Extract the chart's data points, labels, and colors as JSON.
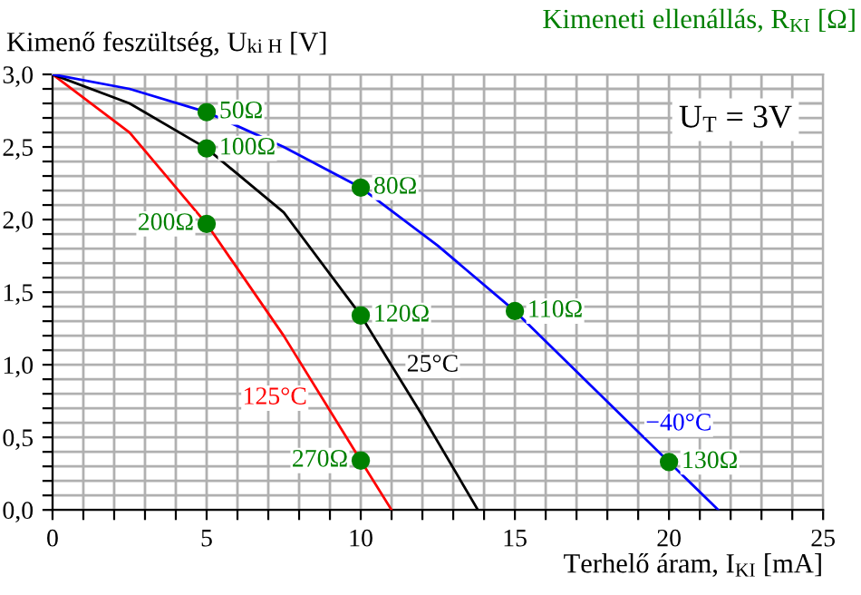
{
  "chart_data": {
    "type": "line",
    "xlabel": "Terhelő áram, I$_{KI}$ [mA]",
    "ylabel": "Kimenő feszültség, U$_{ki H}$ [V]",
    "series": [
      {
        "name": "125°C",
        "color": "#ff0000",
        "x": [
          0,
          2.5,
          5,
          7.5,
          10,
          11
        ],
        "values": [
          3.0,
          2.6,
          1.97,
          1.2,
          0.34,
          0.0
        ]
      },
      {
        "name": "25°C",
        "color": "#000000",
        "x": [
          0,
          2.5,
          5,
          7.5,
          10,
          12,
          13.8
        ],
        "values": [
          3.0,
          2.8,
          2.49,
          2.05,
          1.34,
          0.65,
          0.0
        ]
      },
      {
        "name": "−40°C",
        "color": "#0000ff",
        "x": [
          0,
          2.5,
          5,
          7.5,
          10,
          12.5,
          15,
          17.5,
          20,
          21.6
        ],
        "values": [
          3.0,
          2.9,
          2.74,
          2.5,
          2.22,
          1.82,
          1.37,
          0.85,
          0.33,
          0.0
        ]
      },
      {
        "type": "scatter",
        "color": "#008000",
        "marker": "circle",
        "x": [
          5,
          5,
          5,
          10,
          10,
          10,
          15,
          20
        ],
        "values": [
          2.74,
          2.49,
          1.97,
          2.22,
          1.34,
          0.34,
          1.37,
          0.33
        ]
      }
    ],
    "annotations": [
      {
        "text": "50Ω",
        "x": 5,
        "y": 2.74
      },
      {
        "text": "100Ω",
        "x": 5,
        "y": 2.49
      },
      {
        "text": "200Ω",
        "x": 5,
        "y": 1.97
      },
      {
        "text": "80Ω",
        "x": 10,
        "y": 2.22
      },
      {
        "text": "120Ω",
        "x": 10,
        "y": 1.34
      },
      {
        "text": "270Ω",
        "x": 10,
        "y": 0.34
      },
      {
        "text": "110Ω",
        "x": 15,
        "y": 1.37
      },
      {
        "text": "130Ω",
        "x": 20,
        "y": 0.33
      },
      "Kimeneti ellenállás, R$_{KI}$ [Ω]",
      "U$_{T}$ = 3V"
    ],
    "xlim": [
      0,
      25
    ],
    "ylim": [
      0,
      3.0
    ],
    "xticks": [
      0,
      {
        "value": 1,
        "label": null
      },
      {
        "value": 2,
        "label": null
      },
      {
        "value": 3,
        "label": null
      },
      {
        "value": 4,
        "label": null
      },
      5,
      {
        "value": 6,
        "label": null
      },
      {
        "value": 7,
        "label": null
      },
      {
        "value": 8,
        "label": null
      },
      {
        "value": 9,
        "label": null
      },
      10,
      {
        "value": 11,
        "label": null
      },
      {
        "value": 12,
        "label": null
      },
      {
        "value": 13,
        "label": null
      },
      {
        "value": 14,
        "label": null
      },
      15,
      {
        "value": 16,
        "label": null
      },
      {
        "value": 17,
        "label": null
      },
      {
        "value": 18,
        "label": null
      },
      {
        "value": 19,
        "label": null
      },
      20,
      {
        "value": 21,
        "label": null
      },
      {
        "value": 22,
        "label": null
      },
      {
        "value": 23,
        "label": null
      },
      {
        "value": 24,
        "label": null
      },
      25
    ],
    "yticks": [
      {
        "value": 0,
        "label": "0,0"
      },
      {
        "value": 0.1,
        "label": null
      },
      {
        "value": 0.2,
        "label": null
      },
      {
        "value": 0.3,
        "label": null
      },
      {
        "value": 0.4,
        "label": null
      },
      {
        "value": 0.5,
        "label": "0,5"
      },
      {
        "value": 0.6,
        "label": null
      },
      {
        "value": 0.7,
        "label": null
      },
      {
        "value": 0.8,
        "label": null
      },
      {
        "value": 0.9,
        "label": null
      },
      {
        "value": 1.0,
        "label": "1,0"
      },
      {
        "value": 1.1,
        "label": null
      },
      {
        "value": 1.2,
        "label": null
      },
      {
        "value": 1.3,
        "label": null
      },
      {
        "value": 1.4,
        "label": null
      },
      {
        "value": 1.5,
        "label": "1,5"
      },
      {
        "value": 1.6,
        "label": null
      },
      {
        "value": 1.7,
        "label": null
      },
      {
        "value": 1.8,
        "label": null
      },
      {
        "value": 1.9,
        "label": null
      },
      {
        "value": 2.0,
        "label": "2,0"
      },
      {
        "value": 2.1,
        "label": null
      },
      {
        "value": 2.2,
        "label": null
      },
      {
        "value": 2.3,
        "label": null
      },
      {
        "value": 2.4,
        "label": null
      },
      {
        "value": 2.5,
        "label": "2,5"
      },
      {
        "value": 2.6,
        "label": null
      },
      {
        "value": 2.7,
        "label": null
      },
      {
        "value": 2.8,
        "label": null
      },
      {
        "value": 2.9,
        "label": null
      },
      {
        "value": 3.0,
        "label": "3,0"
      }
    ],
    "grid": true,
    "legend": false,
    "marker": "none",
    "line_style": "solid"
  }
}
